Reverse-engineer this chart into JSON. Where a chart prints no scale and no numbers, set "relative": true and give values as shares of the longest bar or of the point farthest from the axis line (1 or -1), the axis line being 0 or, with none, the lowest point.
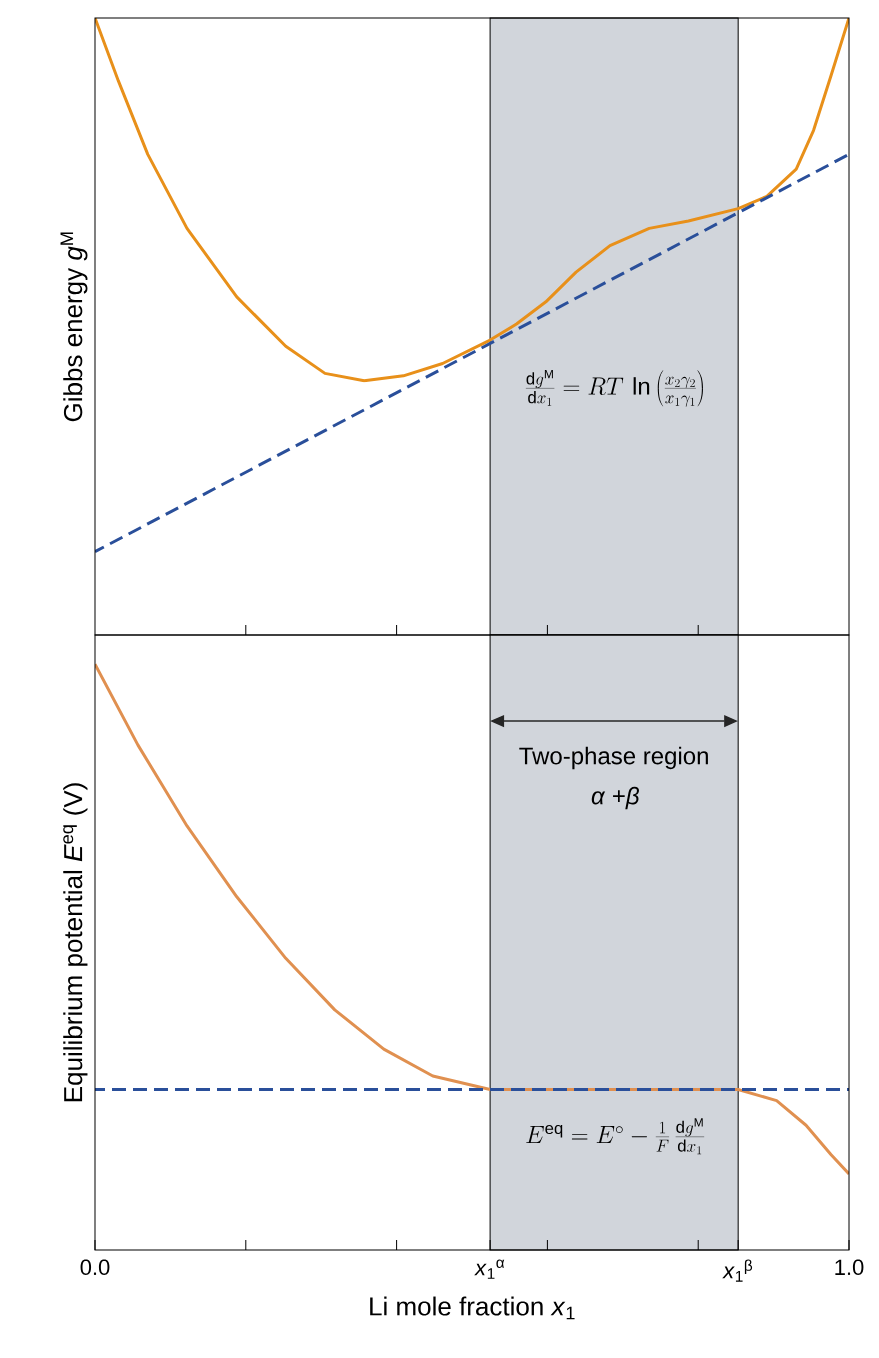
{
  "chart_data": [
    {
      "type": "line",
      "relative": true,
      "ylabel": "Gibbs energy  *g*$^{M}$",
      "xlim": [
        0,
        1
      ],
      "xticks": [
        {
          "value": 0.2,
          "label": null
        },
        {
          "value": 0.4,
          "label": null
        },
        {
          "value": 0.6,
          "label": null
        },
        {
          "value": 0.8,
          "label": null
        }
      ],
      "tick_labels": false,
      "series": [
        {
          "color": "#e8901a",
          "line_style": "solid",
          "x": [
            0,
            0.031,
            0.07,
            0.122,
            0.188,
            0.253,
            0.305,
            0.357,
            0.409,
            0.461,
            0.524,
            0.559,
            0.598,
            0.638,
            0.683,
            0.735,
            0.787,
            0.853,
            0.891,
            0.93,
            0.953,
            0.976,
            1
          ],
          "values": [
            1,
            0.898,
            0.779,
            0.659,
            0.548,
            0.468,
            0.424,
            0.412,
            0.42,
            0.44,
            0.478,
            0.504,
            0.54,
            0.588,
            0.631,
            0.659,
            0.671,
            0.691,
            0.711,
            0.755,
            0.818,
            0.906,
            1
          ]
        },
        {
          "color": "#2a4f9a",
          "line_style": "dashed",
          "x": [
            0,
            1
          ],
          "values": [
            0.135,
            0.779
          ]
        }
      ],
      "bands": [
        {
          "axis": "x",
          "from": 0.524,
          "to": 0.853,
          "color": "#d1d5db"
        }
      ],
      "annotations": [
        "\\frac{\\mathrm{d}g^{\\mathrm{M}}}{\\mathrm{d}x_{1}}=RT\\,\\ln\\left(\\frac{x_{2}\\gamma_{2}}{x_{1}\\gamma_{1}}\\right)"
      ]
    },
    {
      "type": "line",
      "relative": true,
      "xlabel": "Li mole fraction  *x*$_{1}$",
      "ylabel": "Equilibrium potential  *E*$^{eq}$ (V)",
      "xlim": [
        0,
        1
      ],
      "xticks": [
        {
          "value": 0,
          "label": "0.0"
        },
        {
          "value": 0.2,
          "label": null
        },
        {
          "value": 0.4,
          "label": null
        },
        {
          "value": 0.524,
          "label": "*x*$_{1}$$^{α}$"
        },
        {
          "value": 0.6,
          "label": null
        },
        {
          "value": 0.8,
          "label": null
        },
        {
          "value": 0.853,
          "label": "*x*$_{1}$$^{β}$"
        },
        {
          "value": 1,
          "label": "1.0"
        }
      ],
      "tick_labels": "x",
      "series": [
        {
          "color": "#e09050",
          "line_style": "solid",
          "x": [
            0,
            0.057,
            0.122,
            0.188,
            0.253,
            0.318,
            0.383,
            0.448,
            0.524,
            0.853,
            0.904,
            0.943,
            0.976,
            1
          ],
          "values": [
            1,
            0.862,
            0.724,
            0.603,
            0.498,
            0.41,
            0.343,
            0.297,
            0.274,
            0.274,
            0.255,
            0.213,
            0.163,
            0.13
          ]
        },
        {
          "color": "#2a4f9a",
          "line_style": "dashed",
          "x": [
            0,
            1
          ],
          "values": [
            0.274,
            0.274
          ]
        }
      ],
      "bands": [
        {
          "axis": "x",
          "from": 0.524,
          "to": 0.853,
          "color": "#d1d5db",
          "label": "Two-phase region"
        }
      ],
      "annotations": [
        "*α* +*β*",
        "E^{\\mathrm{eq}}=E^{\\circ}-\\frac{1}{F}\\,\\frac{\\mathrm{d}g^{\\mathrm{M}}}{\\mathrm{d}x_{1}}"
      ]
    }
  ]
}
